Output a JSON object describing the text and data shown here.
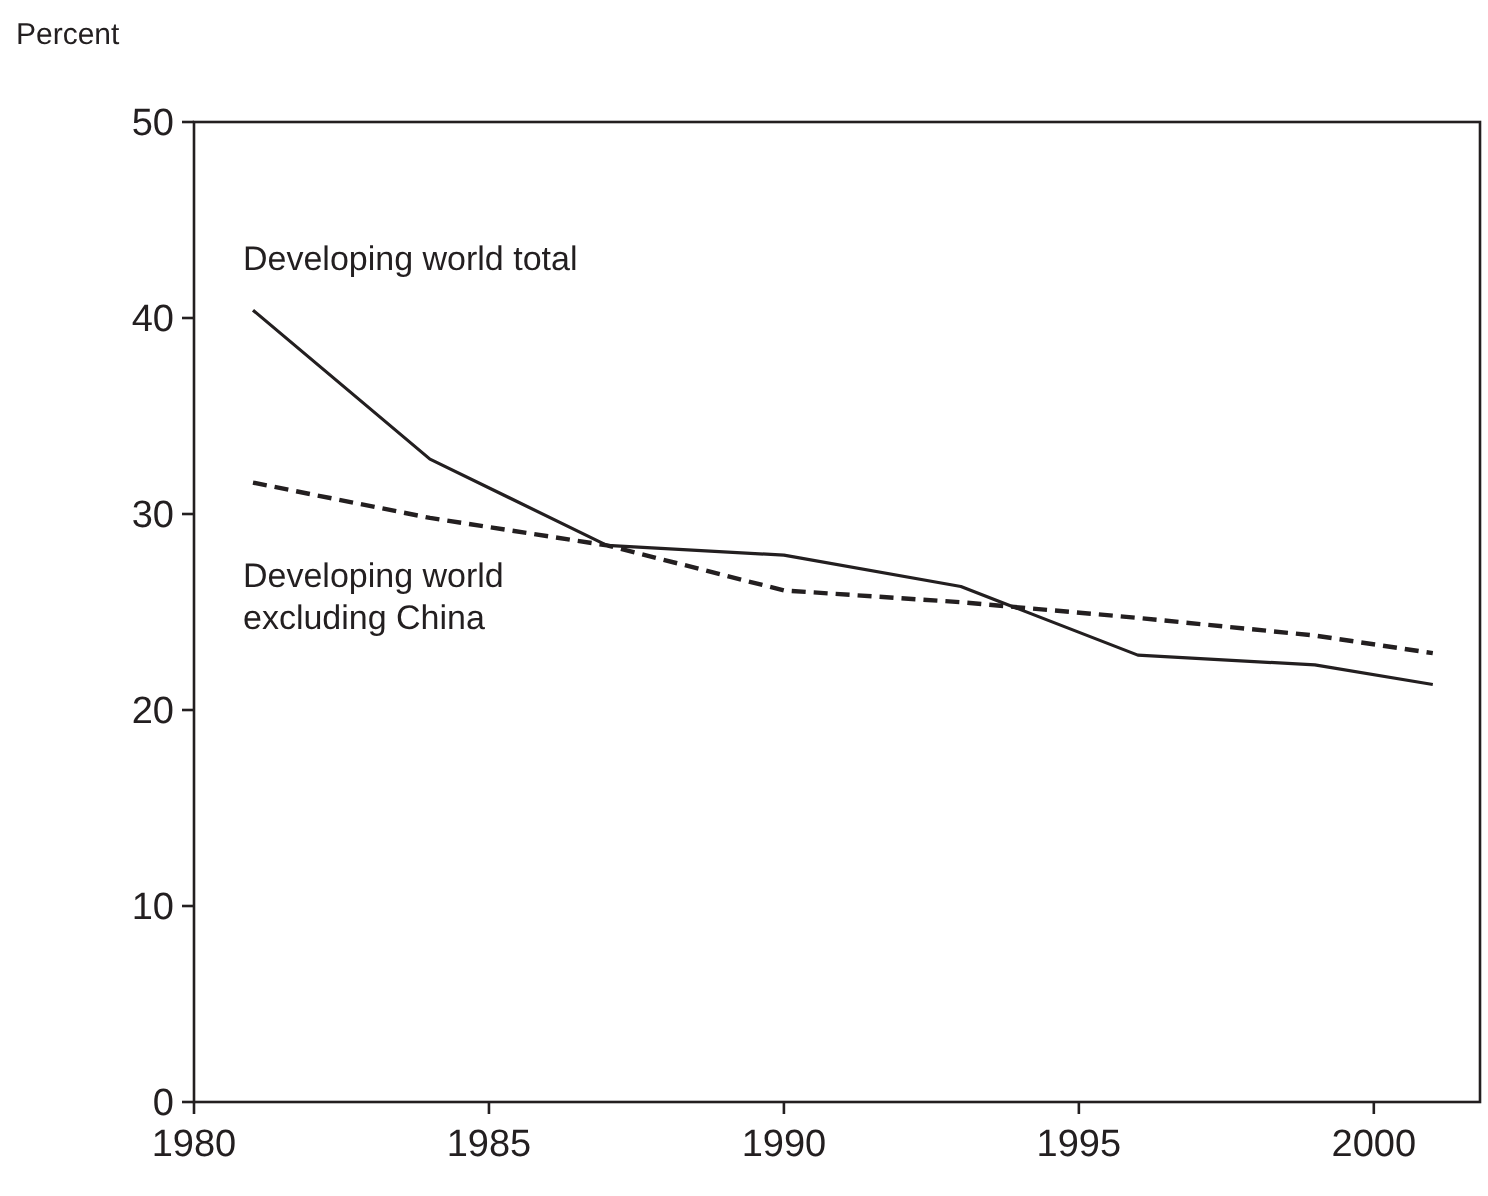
{
  "chart_data": {
    "type": "line",
    "ylabel": "Percent",
    "x": [
      1981,
      1984,
      1987,
      1990,
      1993,
      1996,
      1999,
      2001
    ],
    "series": [
      {
        "name": "Developing world total",
        "color": "#231f20",
        "line_style": "solid",
        "values": [
          40.4,
          32.8,
          28.4,
          27.9,
          26.3,
          22.8,
          22.3,
          21.3
        ]
      },
      {
        "name": "Developing world excluding China",
        "color": "#231f20",
        "line_style": "dashed",
        "values": [
          31.6,
          29.8,
          28.4,
          26.1,
          25.5,
          24.7,
          23.8,
          22.9
        ]
      }
    ],
    "xlim": [
      1980,
      2001.8
    ],
    "xticks": [
      1980,
      1985,
      1990,
      1995,
      2000
    ],
    "ylim": [
      0,
      50
    ],
    "yticks": [
      0,
      10,
      20,
      30,
      40,
      50
    ],
    "grid": false,
    "marker": "none"
  }
}
